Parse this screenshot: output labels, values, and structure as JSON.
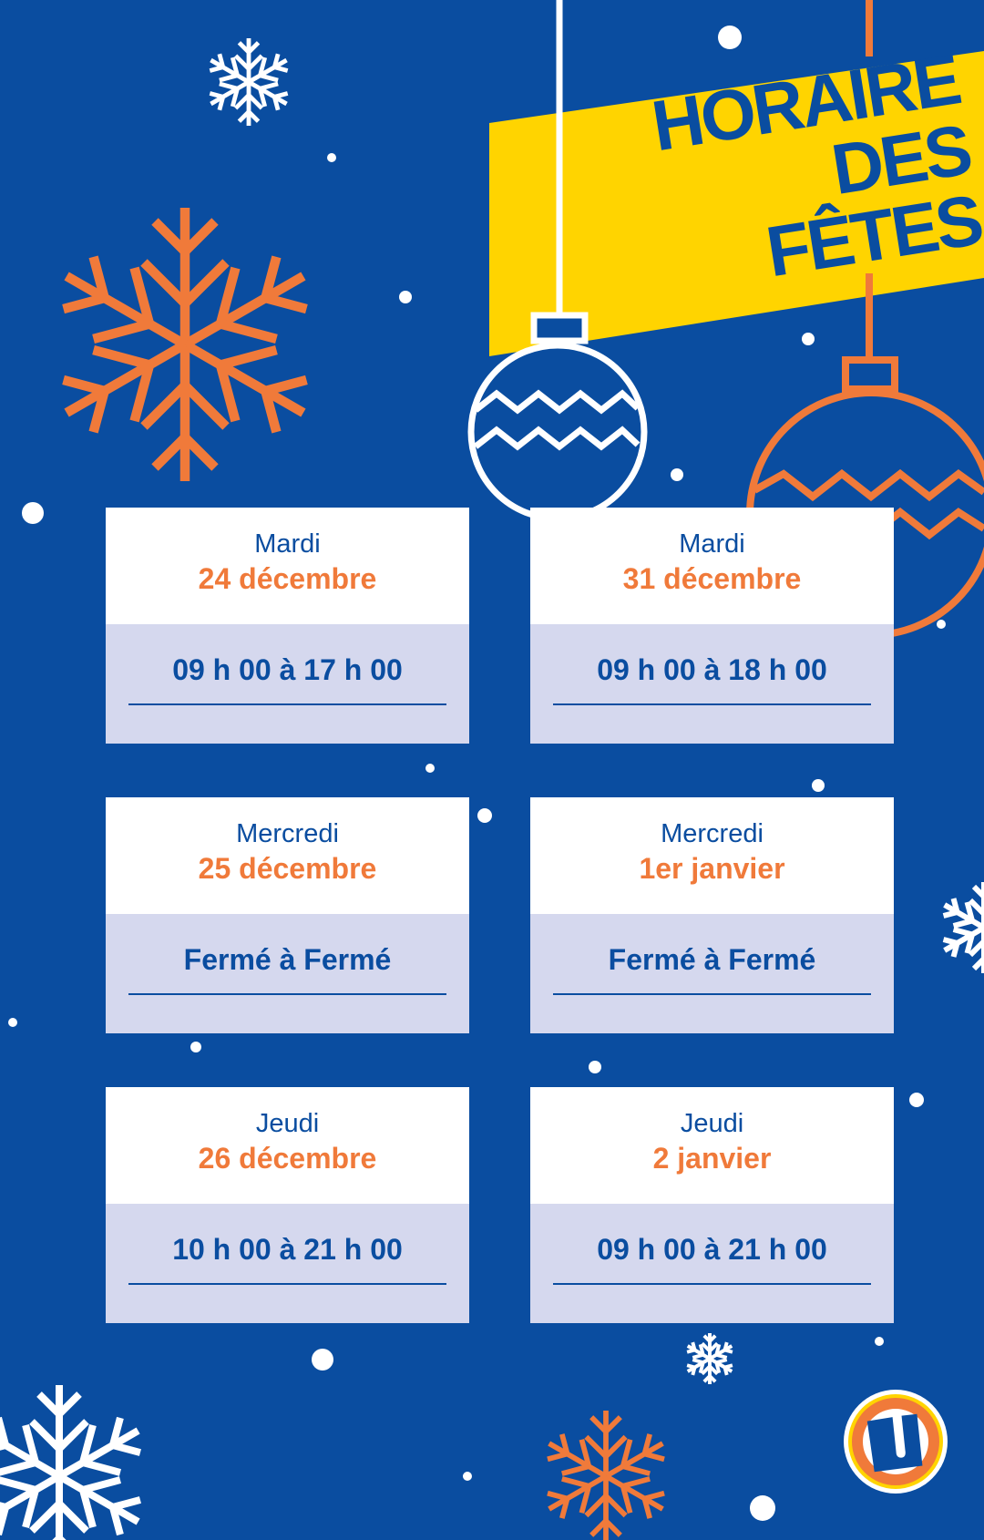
{
  "banner": {
    "line1": "HORAIRE",
    "line2": "DES FÊTES"
  },
  "colors": {
    "background": "#0a4da0",
    "accent_orange": "#f07a3a",
    "banner_yellow": "#ffd400",
    "card_bottom": "#d5d8ee"
  },
  "schedule": [
    {
      "day": "Mardi",
      "date": "24 décembre",
      "hours": "09 h 00 à 17 h 00"
    },
    {
      "day": "Mardi",
      "date": "31 décembre",
      "hours": "09 h 00 à 18 h 00"
    },
    {
      "day": "Mercredi",
      "date": "25 décembre",
      "hours": "Fermé à Fermé"
    },
    {
      "day": "Mercredi",
      "date": "1er janvier",
      "hours": "Fermé à Fermé"
    },
    {
      "day": "Jeudi",
      "date": "26 décembre",
      "hours": "10 h 00 à 21 h 00"
    },
    {
      "day": "Jeudi",
      "date": "2 janvier",
      "hours": "09 h 00 à 21 h 00"
    }
  ],
  "logo": {
    "letter": "U"
  }
}
